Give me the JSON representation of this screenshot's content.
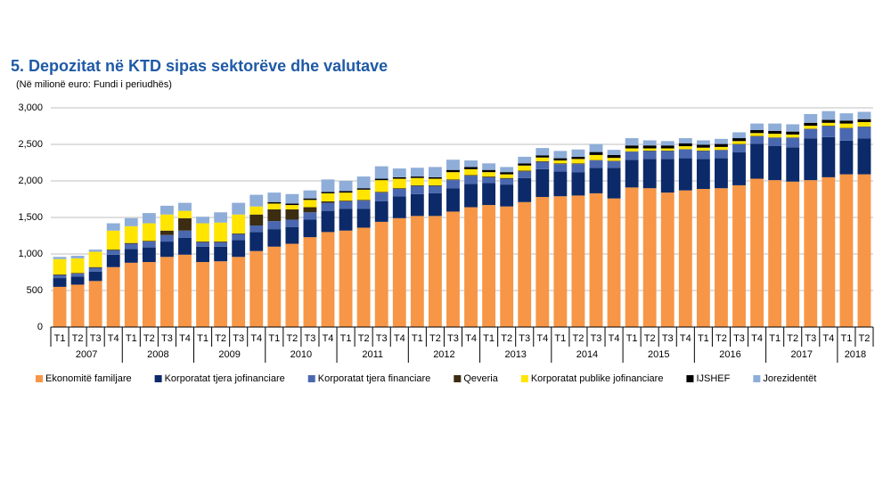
{
  "chart_data": {
    "type": "stacked_bar",
    "title": "5. Depozitat në KTD sipas sektorëve dhe valutave",
    "subtitle": "(Në milionë euro: Fundi i periudhës)",
    "categories": [
      "T1",
      "T2",
      "T3",
      "T4",
      "T1",
      "T2",
      "T3",
      "T4",
      "T1",
      "T2",
      "T3",
      "T4",
      "T1",
      "T2",
      "T3",
      "T4",
      "T1",
      "T2",
      "T3",
      "T4",
      "T1",
      "T2",
      "T3",
      "T4",
      "T1",
      "T2",
      "T3",
      "T4",
      "T1",
      "T2",
      "T3",
      "T4",
      "T1",
      "T2",
      "T3",
      "T4",
      "T1",
      "T2",
      "T3",
      "T4",
      "T1",
      "T2",
      "T3",
      "T4",
      "T1",
      "T2"
    ],
    "years": [
      "2007",
      "2008",
      "2009",
      "2010",
      "2011",
      "2012",
      "2013",
      "2014",
      "2015",
      "2016",
      "2017",
      "2018"
    ],
    "ylim": [
      0,
      3000
    ],
    "yticks": [
      0,
      500,
      {
        "value": 1000,
        "label": "1,000"
      },
      {
        "value": 1500,
        "label": "1,500"
      },
      {
        "value": 2000,
        "label": "2,000"
      },
      {
        "value": 2500,
        "label": "2,500"
      },
      {
        "value": 3000,
        "label": "3,000"
      }
    ],
    "grid": true,
    "series": [
      {
        "name": "Ekonomitë familjare",
        "color": "#f79646",
        "values": [
          550,
          580,
          630,
          820,
          880,
          890,
          960,
          990,
          890,
          900,
          960,
          1040,
          1100,
          1140,
          1230,
          1300,
          1320,
          1360,
          1440,
          1490,
          1520,
          1520,
          1580,
          1640,
          1670,
          1650,
          1710,
          1780,
          1790,
          1800,
          1830,
          1760,
          1910,
          1900,
          1840,
          1870,
          1890,
          1900,
          1940,
          2030,
          2010,
          1990,
          2010,
          2050,
          2090,
          2090
        ]
      },
      {
        "name": "Korporatat tjera jofinanciare",
        "color": "#0c2a69",
        "values": [
          120,
          110,
          130,
          170,
          190,
          200,
          210,
          230,
          210,
          200,
          230,
          260,
          240,
          230,
          240,
          290,
          300,
          260,
          280,
          300,
          300,
          310,
          320,
          320,
          300,
          300,
          330,
          380,
          340,
          320,
          350,
          420,
          380,
          400,
          460,
          440,
          410,
          410,
          450,
          480,
          470,
          470,
          570,
          550,
          460,
          490
        ]
      },
      {
        "name": "Korporatat tjera financiare",
        "color": "#4a68b0",
        "values": [
          40,
          40,
          50,
          60,
          70,
          80,
          90,
          100,
          60,
          60,
          80,
          90,
          110,
          100,
          100,
          110,
          100,
          110,
          120,
          100,
          110,
          100,
          110,
          110,
          80,
          80,
          90,
          100,
          100,
          110,
          100,
          90,
          110,
          110,
          110,
          120,
          110,
          110,
          110,
          100,
          110,
          130,
          130,
          150,
          170,
          160
        ]
      },
      {
        "name": "Qeveria",
        "color": "#3b2c12",
        "values": [
          10,
          10,
          10,
          10,
          10,
          10,
          60,
          170,
          10,
          10,
          10,
          150,
          160,
          140,
          70,
          20,
          10,
          10,
          10,
          10,
          10,
          10,
          10,
          10,
          10,
          10,
          10,
          10,
          10,
          10,
          5,
          5,
          5,
          5,
          5,
          5,
          5,
          5,
          5,
          5,
          5,
          5,
          5,
          5,
          5,
          5
        ]
      },
      {
        "name": "Korporatat publike jofinanciare",
        "color": "#ffe500",
        "values": [
          210,
          200,
          210,
          260,
          230,
          240,
          220,
          100,
          250,
          260,
          260,
          110,
          80,
          60,
          100,
          110,
          110,
          140,
          160,
          130,
          100,
          90,
          100,
          80,
          60,
          50,
          70,
          50,
          40,
          60,
          70,
          40,
          40,
          30,
          30,
          40,
          40,
          40,
          40,
          40,
          50,
          40,
          40,
          40,
          60,
          60
        ]
      },
      {
        "name": "IJSHEF",
        "color": "#000000",
        "values": [
          0,
          0,
          0,
          0,
          0,
          0,
          0,
          0,
          0,
          0,
          0,
          0,
          20,
          20,
          20,
          20,
          20,
          20,
          20,
          20,
          20,
          20,
          30,
          30,
          30,
          30,
          30,
          30,
          30,
          30,
          40,
          40,
          40,
          40,
          40,
          40,
          40,
          40,
          40,
          40,
          40,
          40,
          40,
          40,
          40,
          40
        ]
      },
      {
        "name": "Jorezidentët",
        "color": "#8eadd8",
        "values": [
          30,
          35,
          30,
          100,
          110,
          140,
          120,
          110,
          90,
          140,
          160,
          160,
          130,
          130,
          110,
          170,
          140,
          160,
          170,
          120,
          120,
          140,
          140,
          90,
          90,
          70,
          90,
          100,
          100,
          100,
          110,
          70,
          100,
          70,
          60,
          70,
          60,
          70,
          80,
          90,
          100,
          100,
          120,
          120,
          100,
          100
        ]
      }
    ]
  }
}
